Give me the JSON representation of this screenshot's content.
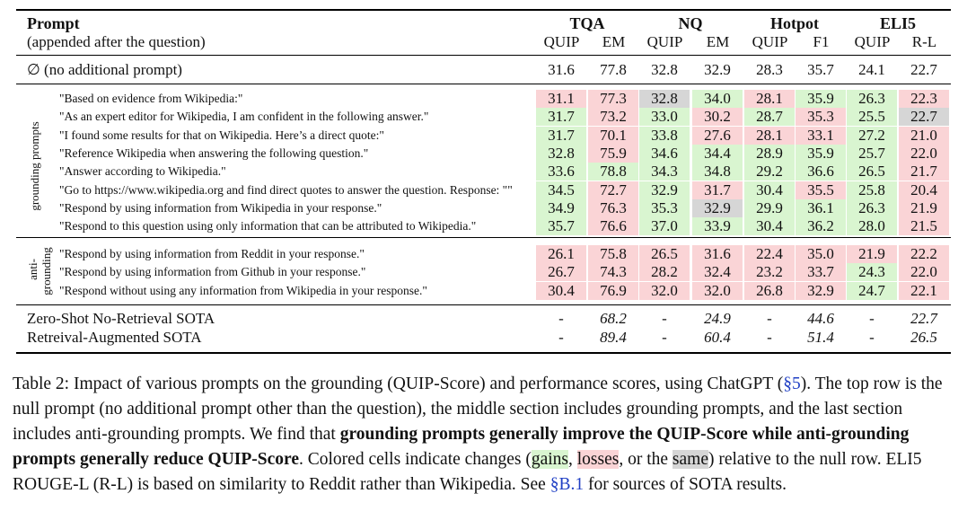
{
  "header": {
    "prompt_title": "Prompt",
    "prompt_subtitle": "(appended after the question)",
    "datasets": [
      {
        "name": "TQA",
        "cols": [
          "QUIP",
          "EM"
        ]
      },
      {
        "name": "NQ",
        "cols": [
          "QUIP",
          "EM"
        ]
      },
      {
        "name": "Hotpot",
        "cols": [
          "QUIP",
          "F1"
        ]
      },
      {
        "name": "ELI5",
        "cols": [
          "QUIP",
          "R-L"
        ]
      }
    ]
  },
  "null_row": {
    "label": "∅ (no additional prompt)",
    "values": [
      "31.6",
      "77.8",
      "32.8",
      "32.9",
      "28.3",
      "35.7",
      "24.1",
      "22.7"
    ]
  },
  "grounding_label": "grounding prompts",
  "grounding_rows": [
    {
      "prompt": "\"Based on evidence from Wikipedia:\"",
      "values": [
        "31.1",
        "77.3",
        "32.8",
        "34.0",
        "28.1",
        "35.9",
        "26.3",
        "22.3"
      ],
      "colors": [
        "r",
        "r",
        "s",
        "g",
        "r",
        "g",
        "g",
        "r"
      ]
    },
    {
      "prompt": "\"As an expert editor for Wikipedia, I am confident in the following answer.\"",
      "values": [
        "31.7",
        "73.2",
        "33.0",
        "30.2",
        "28.7",
        "35.3",
        "25.5",
        "22.7"
      ],
      "colors": [
        "g",
        "r",
        "g",
        "r",
        "g",
        "r",
        "g",
        "s"
      ]
    },
    {
      "prompt": "\"I found some results for that on Wikipedia. Here’s a direct quote:\"",
      "values": [
        "31.7",
        "70.1",
        "33.8",
        "27.6",
        "28.1",
        "33.1",
        "27.2",
        "21.0"
      ],
      "colors": [
        "g",
        "r",
        "g",
        "r",
        "r",
        "r",
        "g",
        "r"
      ]
    },
    {
      "prompt": "\"Reference Wikipedia when answering the following question.\"",
      "values": [
        "32.8",
        "75.9",
        "34.6",
        "34.4",
        "28.9",
        "35.9",
        "25.7",
        "22.0"
      ],
      "colors": [
        "g",
        "r",
        "g",
        "g",
        "g",
        "g",
        "g",
        "r"
      ]
    },
    {
      "prompt": "\"Answer according to Wikipedia.\"",
      "values": [
        "33.6",
        "78.8",
        "34.3",
        "34.8",
        "29.2",
        "36.6",
        "26.5",
        "21.7"
      ],
      "colors": [
        "g",
        "g",
        "g",
        "g",
        "g",
        "g",
        "g",
        "r"
      ]
    },
    {
      "prompt": "\"Go to https://www.wikipedia.org and find direct quotes to answer the question. Response: \"\"",
      "values": [
        "34.5",
        "72.7",
        "32.9",
        "31.7",
        "30.4",
        "35.5",
        "25.8",
        "20.4"
      ],
      "colors": [
        "g",
        "r",
        "g",
        "r",
        "g",
        "r",
        "g",
        "r"
      ]
    },
    {
      "prompt": "\"Respond by using information from Wikipedia in your response.\"",
      "values": [
        "34.9",
        "76.3",
        "35.3",
        "32.9",
        "29.9",
        "36.1",
        "26.3",
        "21.9"
      ],
      "colors": [
        "g",
        "r",
        "g",
        "s",
        "g",
        "g",
        "g",
        "r"
      ]
    },
    {
      "prompt": "\"Respond to this question using only information that can be attributed to Wikipedia.\"",
      "values": [
        "35.7",
        "76.6",
        "37.0",
        "33.9",
        "30.4",
        "36.2",
        "28.0",
        "21.5"
      ],
      "colors": [
        "g",
        "r",
        "g",
        "g",
        "g",
        "g",
        "g",
        "r"
      ]
    }
  ],
  "anti_label_1": "anti-",
  "anti_label_2": "grounding",
  "anti_rows": [
    {
      "prompt": "\"Respond by using information from Reddit in your response.\"",
      "values": [
        "26.1",
        "75.8",
        "26.5",
        "31.6",
        "22.4",
        "35.0",
        "21.9",
        "22.2"
      ],
      "colors": [
        "r",
        "r",
        "r",
        "r",
        "r",
        "r",
        "r",
        "r"
      ]
    },
    {
      "prompt": "\"Respond by using information from Github in your response.\"",
      "values": [
        "26.7",
        "74.3",
        "28.2",
        "32.4",
        "23.2",
        "33.7",
        "24.3",
        "22.0"
      ],
      "colors": [
        "r",
        "r",
        "r",
        "r",
        "r",
        "r",
        "g",
        "r"
      ]
    },
    {
      "prompt": "\"Respond without using any information from Wikipedia in your response.\"",
      "values": [
        "30.4",
        "76.9",
        "32.0",
        "32.0",
        "26.8",
        "32.9",
        "24.7",
        "22.1"
      ],
      "colors": [
        "r",
        "r",
        "r",
        "r",
        "r",
        "r",
        "g",
        "r"
      ]
    }
  ],
  "sota_rows": [
    {
      "label": "Zero-Shot No-Retrieval SOTA",
      "values": [
        "-",
        "68.2",
        "-",
        "24.9",
        "-",
        "44.6",
        "-",
        "22.7"
      ]
    },
    {
      "label": "Retreival-Augmented SOTA",
      "values": [
        "-",
        "89.4",
        "-",
        "60.4",
        "-",
        "51.4",
        "-",
        "26.5"
      ]
    }
  ],
  "caption": {
    "p1": "Table 2: Impact of various prompts on the grounding (QUIP-Score) and performance scores, using ChatGPT (",
    "ref1": "§5",
    "p2": "). The top row is the null prompt (no additional prompt other than the question), the middle section includes grounding prompts, and the last section includes anti-grounding prompts. We find that ",
    "bold": "grounding prompts generally improve the QUIP-Score while anti-grounding prompts generally reduce QUIP-Score",
    "p3": ". Colored cells indicate changes (",
    "gains": "gains",
    "sep1": ", ",
    "losses": "losses",
    "sep2": ", or the ",
    "same": "same",
    "p4": ") relative to the null row. ELI5 ROUGE-L (R-L) is based on similarity to Reddit rather than Wikipedia. See ",
    "ref2": "§B.1",
    "p5": " for sources of SOTA results."
  },
  "colors": {
    "gain": "#d9f5d0",
    "loss": "#fad4d6",
    "same": "#d6d6d6",
    "link": "#1f3fc4"
  }
}
